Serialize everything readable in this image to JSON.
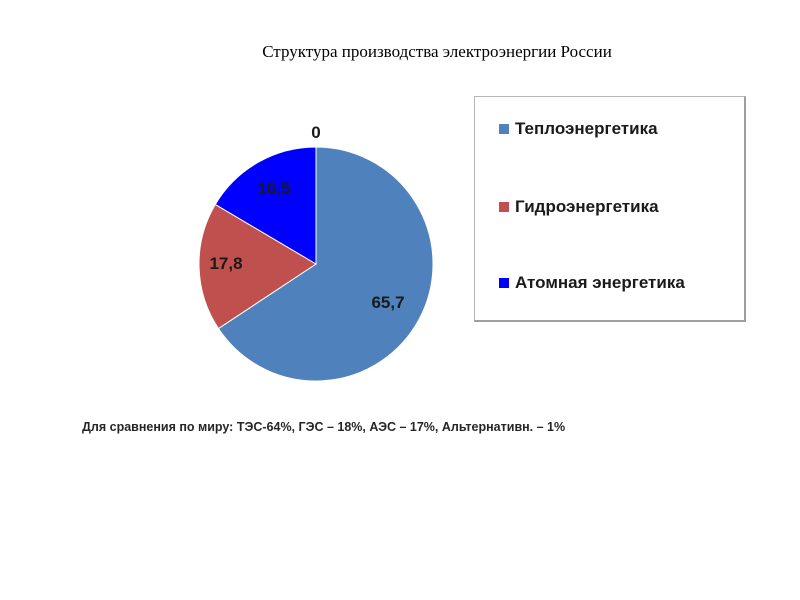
{
  "chart_data": {
    "type": "pie",
    "title": "Структура производства электроэнергии России",
    "categories": [
      "Теплоэнергетика",
      "Гидроэнергетика",
      "Атомная энергетика",
      ""
    ],
    "values": [
      65.7,
      17.8,
      16.5,
      0
    ],
    "data_labels": [
      "65,7",
      "17,8",
      "16,5",
      "0"
    ],
    "colors": [
      "#4f81bd",
      "#c0504d",
      "#0000ff",
      "#000000"
    ],
    "legend": {
      "placement": "right",
      "entries": [
        {
          "label": "Теплоэнергетика",
          "color": "#4f81bd"
        },
        {
          "label": "Гидроэнергетика",
          "color": "#c0504d"
        },
        {
          "label": "Атомная энергетика",
          "color": "#0000ff"
        }
      ]
    }
  },
  "footnote": "Для сравнения по миру: ТЭС-64%, ГЭС – 18%, АЭС – 17%, Альтернативн. – 1%"
}
